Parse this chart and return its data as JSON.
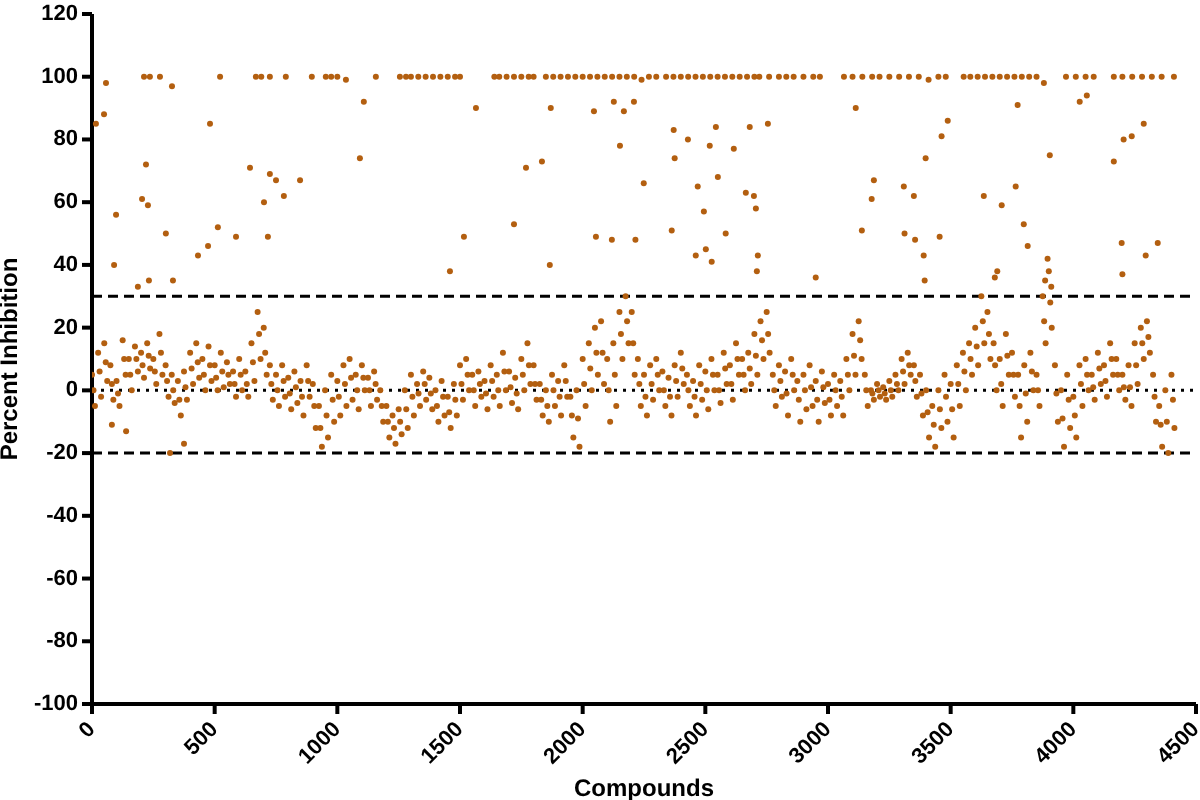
{
  "chart_data": {
    "type": "scatter",
    "xlabel": "Compounds",
    "ylabel": "Percent Inhibition",
    "color": "#b35f10",
    "marker": "circle",
    "xlim": [
      0,
      4500
    ],
    "xticks": [
      0,
      500,
      1000,
      1500,
      2000,
      2500,
      3000,
      3500,
      4000,
      4500
    ],
    "ylim": [
      -100,
      120
    ],
    "yticks": [
      -100,
      -80,
      -60,
      -40,
      -20,
      0,
      20,
      40,
      60,
      80,
      100,
      120
    ],
    "ref_lines": [
      {
        "axis": "y",
        "value": 30,
        "color": "#000000",
        "line_style": "dashed"
      },
      {
        "axis": "y",
        "value": 0,
        "color": "#000000",
        "line_style": "dotted"
      },
      {
        "axis": "y",
        "value": -20,
        "color": "#000000",
        "line_style": "dashed"
      }
    ],
    "x": [
      0,
      12,
      25,
      37,
      50,
      62,
      75,
      87,
      100,
      112,
      125,
      137,
      150,
      162,
      175,
      187,
      200,
      212,
      225,
      237,
      250,
      262,
      275,
      287,
      300,
      312,
      325,
      337,
      350,
      362,
      375,
      387,
      400,
      412,
      425,
      437,
      450,
      462,
      475,
      487,
      500,
      512,
      525,
      537,
      550,
      562,
      575,
      587,
      600,
      612,
      625,
      637,
      650,
      662,
      675,
      687,
      700,
      712,
      725,
      737,
      750,
      762,
      775,
      787,
      800,
      812,
      825,
      837,
      850,
      862,
      875,
      887,
      900,
      912,
      925,
      937,
      950,
      962,
      975,
      987,
      1000,
      1012,
      1025,
      1037,
      1050,
      1062,
      1075,
      1087,
      1100,
      1112,
      1125,
      1137,
      1150,
      1162,
      1175,
      1187,
      1200,
      1212,
      1225,
      1237,
      1250,
      1262,
      1275,
      1287,
      1300,
      1312,
      1325,
      1337,
      1350,
      1362,
      1375,
      1387,
      1400,
      1412,
      1425,
      1437,
      1450,
      1462,
      1475,
      1487,
      1500,
      1512,
      1525,
      1537,
      1550,
      1562,
      1575,
      1587,
      1600,
      1612,
      1625,
      1637,
      1650,
      1662,
      1675,
      1687,
      1700,
      1712,
      1725,
      1737,
      1750,
      1762,
      1775,
      1787,
      1800,
      1812,
      1825,
      1837,
      1850,
      1862,
      1875,
      1887,
      1900,
      1912,
      1925,
      1937,
      1950,
      1962,
      1975,
      1987,
      2000,
      2012,
      2025,
      2037,
      2050,
      2062,
      2075,
      2087,
      2100,
      2112,
      2125,
      2137,
      2150,
      2162,
      2175,
      2187,
      2200,
      2212,
      2225,
      2237,
      2250,
      2262,
      2275,
      2287,
      2300,
      2312,
      2325,
      2337,
      2350,
      2362,
      2375,
      2387,
      2400,
      2412,
      2425,
      2437,
      2450,
      2462,
      2475,
      2487,
      2500,
      2512,
      2525,
      2537,
      2550,
      2562,
      2575,
      2587,
      2600,
      2612,
      2625,
      2637,
      2650,
      2662,
      2675,
      2687,
      2700,
      2712,
      2725,
      2737,
      2750,
      2762,
      2775,
      2787,
      2800,
      2812,
      2825,
      2837,
      2850,
      2862,
      2875,
      2887,
      2900,
      2912,
      2925,
      2937,
      2950,
      2962,
      2975,
      2987,
      3000,
      3012,
      3025,
      3037,
      3050,
      3062,
      3075,
      3087,
      3100,
      3112,
      3125,
      3137,
      3150,
      3162,
      3175,
      3187,
      3200,
      3212,
      3225,
      3237,
      3250,
      3262,
      3275,
      3287,
      3300,
      3312,
      3325,
      3337,
      3350,
      3362,
      3375,
      3387,
      3400,
      3412,
      3425,
      3437,
      3450,
      3462,
      3475,
      3487,
      3500,
      3512,
      3525,
      3537,
      3550,
      3562,
      3575,
      3587,
      3600,
      3612,
      3625,
      3637,
      3650,
      3662,
      3675,
      3687,
      3700,
      3712,
      3725,
      3737,
      3750,
      3762,
      3775,
      3787,
      3800,
      3812,
      3825,
      3837,
      3850,
      3862,
      3875,
      3887,
      3900,
      3912,
      3925,
      3937,
      3950,
      3962,
      3975,
      3987,
      4000,
      4012,
      4025,
      4037,
      4050,
      4062,
      4075,
      4087,
      4100,
      4112,
      4125,
      4137,
      4150,
      4162,
      4175,
      4187,
      4200,
      4212,
      4225,
      4237,
      4250,
      4262,
      4275,
      4287,
      4300,
      4312,
      4325,
      4337,
      4350,
      4362,
      4375,
      4387,
      4400,
      4412,
      6,
      31,
      56,
      81,
      106,
      131,
      156,
      181,
      206,
      231,
      256,
      281,
      306,
      331,
      356,
      381,
      406,
      431,
      456,
      481,
      506,
      531,
      556,
      581,
      606,
      631,
      656,
      681,
      706,
      731,
      756,
      781,
      806,
      831,
      856,
      881,
      906,
      931,
      956,
      981,
      1006,
      1031,
      1056,
      1081,
      1106,
      1131,
      1156,
      1181,
      1206,
      1231,
      1256,
      1281,
      1306,
      1331,
      1356,
      1381,
      1406,
      1431,
      1456,
      1481,
      1506,
      1531,
      1556,
      1581,
      1606,
      1631,
      1656,
      1681,
      1706,
      1731,
      1756,
      1781,
      1806,
      1831,
      1856,
      1881,
      1906,
      1931,
      1956,
      1981,
      2006,
      2031,
      2056,
      2081,
      2106,
      2131,
      2156,
      2181,
      2206,
      2231,
      2256,
      2281,
      2306,
      2331,
      2356,
      2381,
      2406,
      2431,
      2456,
      2481,
      2506,
      2531,
      2556,
      2581,
      2606,
      2631,
      2656,
      2681,
      2706,
      2731,
      2756,
      2781,
      2806,
      2831,
      2856,
      2881,
      2906,
      2931,
      2956,
      2981,
      3006,
      3031,
      3056,
      3081,
      3106,
      3131,
      3156,
      3181,
      3206,
      3231,
      3256,
      3281,
      3306,
      3331,
      3356,
      3381,
      3406,
      3431,
      3456,
      3481,
      3506,
      3531,
      3556,
      3581,
      3606,
      3631,
      3656,
      3681,
      3706,
      3731,
      3756,
      3781,
      3806,
      3831,
      3856,
      3881,
      3906,
      3931,
      3956,
      3981,
      4006,
      4031,
      4056,
      4081,
      4106,
      4131,
      4156,
      4181,
      4206,
      4231,
      4256,
      4281,
      4306,
      4331,
      4356,
      4381,
      4406,
      212,
      236,
      277,
      522,
      668,
      690,
      725,
      790,
      896,
      953,
      975,
      1000,
      1035,
      1157,
      1255,
      1280,
      1300,
      1330,
      1360,
      1390,
      1420,
      1450,
      1480,
      1500,
      1640,
      1660,
      1690,
      1720,
      1750,
      1780,
      1800,
      1850,
      1880,
      1910,
      1940,
      1970,
      2000,
      2030,
      2060,
      2090,
      2120,
      2150,
      2180,
      2210,
      2240,
      2270,
      2300,
      2340,
      2370,
      2400,
      2430,
      2460,
      2490,
      2520,
      2550,
      2580,
      2610,
      2640,
      2670,
      2700,
      2720,
      2760,
      2800,
      2830,
      2860,
      2900,
      2940,
      2967,
      3065,
      3100,
      3140,
      3180,
      3210,
      3250,
      3290,
      3330,
      3370,
      3410,
      3450,
      3480,
      3553,
      3580,
      3610,
      3640,
      3670,
      3700,
      3730,
      3760,
      3790,
      3820,
      3850,
      3880,
      3970,
      4010,
      4050,
      4083,
      4165,
      4200,
      4240,
      4280,
      4320,
      4360,
      4410,
      16,
      49,
      57,
      98,
      90,
      204,
      220,
      228,
      232,
      187,
      301,
      326,
      330,
      432,
      473,
      481,
      513,
      587,
      644,
      701,
      725,
      750,
      717,
      782,
      848,
      1092,
      1108,
      1565,
      1516,
      1459,
      1720,
      1769,
      1834,
      1866,
      1870,
      2046,
      2054,
      2119,
      2127,
      2152,
      2168,
      2209,
      2215,
      2249,
      2371,
      2375,
      2429,
      2363,
      2461,
      2469,
      2494,
      2502,
      2518,
      2526,
      2543,
      2551,
      2583,
      2616,
      2665,
      2681,
      2698,
      2706,
      2714,
      2710,
      2755,
      2950,
      3113,
      3138,
      3178,
      3187,
      3309,
      3312,
      3350,
      3355,
      3390,
      3398,
      3394,
      3455,
      3463,
      3488,
      3635,
      3708,
      3765,
      3798,
      3814,
      3773,
      3904,
      4026,
      4055,
      4165,
      4197,
      4200,
      4205,
      4238,
      4287,
      4295,
      4344,
      3680,
      3690,
      3895,
      3885,
      3910,
      139,
      81,
      375,
      318
    ],
    "values": [
      5,
      -5,
      12,
      -2,
      15,
      3,
      8,
      -3,
      3,
      -5,
      16,
      5,
      10,
      0,
      14,
      6,
      12,
      4,
      15,
      7,
      10,
      2,
      18,
      5,
      8,
      -2,
      5,
      -4,
      3,
      -8,
      6,
      -3,
      12,
      2,
      15,
      4,
      10,
      0,
      14,
      3,
      8,
      0,
      12,
      1,
      9,
      2,
      6,
      -2,
      10,
      0,
      6,
      -2,
      15,
      3,
      25,
      10,
      20,
      5,
      8,
      -3,
      5,
      -5,
      8,
      -2,
      4,
      -6,
      6,
      -4,
      3,
      -8,
      8,
      -2,
      2,
      -12,
      -5,
      -18,
      0,
      -15,
      5,
      -10,
      3,
      -8,
      8,
      -5,
      10,
      -3,
      5,
      -6,
      8,
      0,
      4,
      -5,
      6,
      -3,
      0,
      -10,
      -5,
      -15,
      -8,
      -17,
      -6,
      -14,
      0,
      -12,
      5,
      -8,
      2,
      -5,
      6,
      -3,
      4,
      -6,
      0,
      -10,
      3,
      -8,
      -2,
      -12,
      2,
      -8,
      8,
      -3,
      10,
      0,
      5,
      -5,
      6,
      -2,
      3,
      -6,
      8,
      -2,
      5,
      -5,
      12,
      0,
      6,
      -4,
      4,
      -6,
      10,
      0,
      15,
      2,
      8,
      -3,
      2,
      -8,
      0,
      -10,
      5,
      -5,
      3,
      -8,
      8,
      -2,
      -2,
      -15,
      0,
      -18,
      10,
      -5,
      15,
      0,
      20,
      5,
      22,
      2,
      10,
      -10,
      15,
      -5,
      25,
      10,
      30,
      15,
      25,
      5,
      10,
      -5,
      5,
      -8,
      8,
      -3,
      10,
      0,
      6,
      -5,
      4,
      -8,
      8,
      -2,
      12,
      2,
      5,
      -5,
      3,
      -8,
      8,
      -3,
      6,
      -6,
      10,
      0,
      5,
      -4,
      12,
      2,
      8,
      -3,
      15,
      5,
      10,
      0,
      12,
      2,
      18,
      5,
      22,
      10,
      25,
      12,
      5,
      -5,
      8,
      -2,
      6,
      -8,
      10,
      0,
      3,
      -10,
      5,
      -6,
      8,
      -5,
      3,
      -10,
      6,
      -4,
      2,
      -8,
      5,
      -5,
      3,
      -8,
      10,
      0,
      18,
      5,
      22,
      10,
      5,
      -5,
      0,
      -3,
      2,
      -2,
      1,
      -3,
      3,
      -2,
      5,
      0,
      10,
      2,
      12,
      5,
      8,
      -2,
      5,
      -8,
      0,
      -15,
      -5,
      -18,
      0,
      -12,
      5,
      -10,
      2,
      -15,
      8,
      -5,
      12,
      0,
      15,
      5,
      20,
      8,
      30,
      15,
      25,
      10,
      15,
      0,
      10,
      -5,
      18,
      5,
      12,
      -2,
      5,
      -15,
      8,
      -10,
      12,
      0,
      5,
      -5,
      30,
      15,
      38,
      20,
      8,
      -10,
      0,
      -18,
      5,
      -12,
      -2,
      -15,
      8,
      -5,
      10,
      0,
      5,
      -3,
      12,
      2,
      8,
      -2,
      15,
      5,
      10,
      0,
      5,
      -3,
      8,
      -5,
      15,
      2,
      20,
      10,
      22,
      12,
      5,
      -10,
      -5,
      -18,
      0,
      -20,
      5,
      -12,
      0,
      6,
      9,
      2,
      -1,
      10,
      5,
      10,
      8,
      11,
      6,
      12,
      3,
      0,
      -3,
      1,
      7,
      9,
      5,
      8,
      4,
      6,
      5,
      2,
      5,
      2,
      9,
      18,
      12,
      2,
      0,
      3,
      -1,
      1,
      -2,
      3,
      -5,
      -12,
      -8,
      -3,
      -2,
      2,
      4,
      0,
      4,
      0,
      2,
      -5,
      -10,
      -12,
      -10,
      -6,
      -2,
      -1,
      2,
      -1,
      -5,
      -2,
      -7,
      -3,
      2,
      5,
      0,
      2,
      -1,
      3,
      0,
      6,
      1,
      -1,
      5,
      8,
      2,
      -3,
      -5,
      0,
      -2,
      3,
      -8,
      -9,
      2,
      7,
      12,
      12,
      0,
      5,
      18,
      22,
      15,
      2,
      -2,
      2,
      5,
      0,
      -2,
      3,
      7,
      0,
      -2,
      2,
      0,
      5,
      0,
      7,
      2,
      10,
      5,
      7,
      11,
      16,
      18,
      0,
      3,
      -1,
      5,
      -3,
      0,
      1,
      -3,
      1,
      -3,
      0,
      -2,
      5,
      11,
      16,
      0,
      -1,
      0,
      -1,
      0,
      2,
      6,
      8,
      3,
      -1,
      -7,
      -11,
      -6,
      -2,
      -6,
      2,
      6,
      10,
      14,
      22,
      18,
      8,
      2,
      11,
      5,
      -5,
      -1,
      6,
      0,
      22,
      28,
      -1,
      -9,
      -3,
      -8,
      2,
      5,
      1,
      7,
      3,
      10,
      5,
      1,
      1,
      8,
      15,
      17,
      -2,
      -11,
      -10,
      -3,
      100,
      100,
      100,
      100,
      100,
      100,
      100,
      100,
      100,
      100,
      100,
      100,
      99,
      100,
      100,
      100,
      100,
      100,
      100,
      100,
      100,
      100,
      100,
      100,
      100,
      100,
      100,
      100,
      100,
      100,
      100,
      100,
      100,
      100,
      100,
      100,
      100,
      100,
      100,
      100,
      100,
      100,
      100,
      100,
      99,
      100,
      100,
      100,
      100,
      100,
      100,
      100,
      100,
      100,
      100,
      100,
      100,
      100,
      100,
      100,
      100,
      100,
      100,
      100,
      100,
      100,
      100,
      100,
      100,
      100,
      100,
      100,
      100,
      100,
      100,
      100,
      100,
      99,
      100,
      100,
      100,
      100,
      100,
      100,
      100,
      100,
      100,
      100,
      100,
      100,
      100,
      98,
      100,
      100,
      100,
      100,
      100,
      100,
      100,
      100,
      100,
      100,
      100,
      85,
      88,
      98,
      56,
      40,
      61,
      72,
      59,
      35,
      33,
      50,
      97,
      35,
      43,
      46,
      85,
      52,
      49,
      71,
      60,
      69,
      67,
      49,
      62,
      67,
      74,
      92,
      90,
      49,
      38,
      53,
      71,
      73,
      40,
      90,
      89,
      49,
      48,
      92,
      78,
      89,
      92,
      48,
      66,
      83,
      74,
      80,
      51,
      43,
      65,
      57,
      45,
      78,
      41,
      84,
      68,
      50,
      77,
      63,
      84,
      62,
      58,
      43,
      38,
      85,
      36,
      90,
      51,
      61,
      67,
      65,
      50,
      62,
      48,
      43,
      74,
      35,
      49,
      81,
      86,
      62,
      59,
      65,
      53,
      46,
      91,
      75,
      92,
      94,
      73,
      47,
      37,
      80,
      81,
      85,
      43,
      47,
      36,
      38,
      42,
      35,
      33,
      -13,
      -11,
      -17,
      -20
    ]
  }
}
